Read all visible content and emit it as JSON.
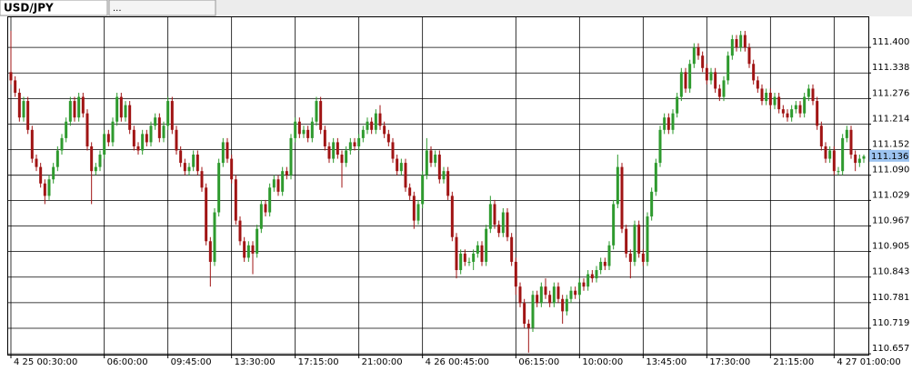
{
  "tabs": [
    "USD/JPY",
    "..."
  ],
  "chart_data": {
    "type": "candlestick",
    "categories": [
      "4 25 00:30:00",
      null,
      null,
      null,
      null,
      null,
      null,
      null,
      null,
      null,
      null,
      null,
      null,
      null,
      null,
      null,
      null,
      null,
      null,
      null,
      null,
      null,
      "06:00:00",
      null,
      null,
      null,
      null,
      null,
      null,
      null,
      null,
      null,
      null,
      null,
      null,
      null,
      null,
      "09:45:00",
      null,
      null,
      null,
      null,
      null,
      null,
      null,
      null,
      null,
      null,
      null,
      null,
      null,
      null,
      "13:30:00",
      null,
      null,
      null,
      null,
      null,
      null,
      null,
      null,
      null,
      null,
      null,
      null,
      null,
      null,
      "17:15:00",
      null,
      null,
      null,
      null,
      null,
      null,
      null,
      null,
      null,
      null,
      null,
      null,
      null,
      null,
      "21:00:00",
      null,
      null,
      null,
      null,
      null,
      null,
      null,
      null,
      null,
      null,
      null,
      null,
      null,
      null,
      "4 26 00:45:00",
      null,
      null,
      null,
      null,
      null,
      null,
      null,
      null,
      null,
      null,
      null,
      null,
      null,
      null,
      null,
      null,
      null,
      null,
      null,
      null,
      null,
      "06:15:00",
      null,
      null,
      null,
      null,
      null,
      null,
      null,
      null,
      null,
      null,
      null,
      null,
      null,
      null,
      "10:00:00",
      null,
      null,
      null,
      null,
      null,
      null,
      null,
      null,
      null,
      null,
      null,
      null,
      null,
      null,
      "13:45:00",
      null,
      null,
      null,
      null,
      null,
      null,
      null,
      null,
      null,
      null,
      null,
      null,
      null,
      null,
      "17:30:00",
      null,
      null,
      null,
      null,
      null,
      null,
      null,
      null,
      null,
      null,
      null,
      null,
      null,
      null,
      "21:15:00",
      null,
      null,
      null,
      null,
      null,
      null,
      null,
      null,
      null,
      null,
      null,
      null,
      null,
      null,
      "4 27 01:00:00",
      null,
      null,
      null,
      null,
      null,
      null,
      null
    ],
    "open": [
      111.34,
      111.32,
      111.29,
      111.23,
      111.27,
      111.2,
      111.13,
      111.11,
      111.07,
      111.04,
      111.08,
      111.11,
      111.15,
      111.18,
      111.22,
      111.27,
      111.23,
      111.28,
      111.24,
      111.16,
      111.1,
      111.11,
      111.14,
      111.19,
      111.17,
      111.22,
      111.28,
      111.23,
      111.26,
      111.2,
      111.16,
      111.15,
      111.19,
      111.17,
      111.21,
      111.23,
      111.18,
      111.21,
      111.27,
      111.2,
      111.15,
      111.12,
      111.1,
      111.11,
      111.14,
      111.1,
      111.06,
      110.93,
      110.88,
      111.0,
      111.12,
      111.17,
      111.13,
      111.08,
      110.98,
      110.93,
      110.89,
      110.92,
      110.9,
      110.96,
      111.02,
      111.0,
      111.06,
      111.08,
      111.05,
      111.1,
      111.09,
      111.18,
      111.22,
      111.19,
      111.2,
      111.18,
      111.22,
      111.27,
      111.2,
      111.16,
      111.13,
      111.17,
      111.14,
      111.12,
      111.15,
      111.17,
      111.16,
      111.18,
      111.2,
      111.22,
      111.2,
      111.24,
      111.21,
      111.19,
      111.17,
      111.13,
      111.1,
      111.12,
      111.06,
      111.04,
      110.98,
      111.02,
      111.09,
      111.15,
      111.12,
      111.14,
      111.08,
      111.1,
      111.04,
      110.94,
      110.86,
      110.9,
      110.88,
      110.88,
      110.9,
      110.92,
      110.88,
      110.96,
      111.02,
      110.97,
      110.95,
      111.0,
      110.94,
      110.88,
      110.82,
      110.78,
      110.73,
      110.72,
      110.8,
      110.78,
      110.82,
      110.8,
      110.78,
      110.82,
      110.79,
      110.76,
      110.79,
      110.81,
      110.8,
      110.83,
      110.82,
      110.85,
      110.84,
      110.86,
      110.88,
      110.87,
      110.92,
      111.02,
      111.11,
      110.96,
      110.9,
      110.88,
      110.97,
      110.9,
      110.88,
      110.99,
      111.05,
      111.12,
      111.2,
      111.23,
      111.2,
      111.24,
      111.28,
      111.34,
      111.3,
      111.36,
      111.4,
      111.38,
      111.35,
      111.32,
      111.34,
      111.3,
      111.28,
      111.32,
      111.38,
      111.42,
      111.4,
      111.43,
      111.4,
      111.36,
      111.32,
      111.3,
      111.27,
      111.29,
      111.26,
      111.28,
      111.25,
      111.24,
      111.23,
      111.25,
      111.26,
      111.24,
      111.28,
      111.3,
      111.27,
      111.21,
      111.16,
      111.13,
      111.15,
      111.1,
      111.1,
      111.18,
      111.2,
      111.14,
      111.12,
      111.13
    ],
    "high": [
      111.44,
      111.33,
      111.3,
      111.28,
      111.28,
      111.21,
      111.14,
      111.12,
      111.08,
      111.09,
      111.12,
      111.16,
      111.19,
      111.23,
      111.28,
      111.28,
      111.29,
      111.29,
      111.25,
      111.17,
      111.12,
      111.15,
      111.2,
      111.2,
      111.23,
      111.29,
      111.29,
      111.27,
      111.27,
      111.21,
      111.17,
      111.2,
      111.2,
      111.22,
      111.24,
      111.24,
      111.22,
      111.28,
      111.28,
      111.21,
      111.16,
      111.13,
      111.12,
      111.15,
      111.15,
      111.11,
      111.07,
      110.94,
      111.01,
      111.13,
      111.18,
      111.18,
      111.14,
      111.09,
      110.99,
      110.94,
      110.93,
      110.93,
      110.97,
      111.03,
      111.03,
      111.07,
      111.09,
      111.09,
      111.11,
      111.11,
      111.19,
      111.23,
      111.23,
      111.21,
      111.21,
      111.23,
      111.28,
      111.28,
      111.21,
      111.17,
      111.18,
      111.18,
      111.15,
      111.16,
      111.18,
      111.18,
      111.19,
      111.21,
      111.23,
      111.23,
      111.25,
      111.26,
      111.22,
      111.2,
      111.18,
      111.14,
      111.13,
      111.13,
      111.07,
      111.05,
      111.03,
      111.1,
      111.18,
      111.16,
      111.15,
      111.15,
      111.11,
      111.11,
      111.05,
      110.95,
      110.91,
      110.91,
      110.89,
      110.91,
      110.93,
      110.93,
      110.97,
      111.04,
      111.03,
      110.98,
      111.01,
      111.01,
      110.95,
      110.89,
      110.83,
      110.79,
      110.74,
      110.81,
      110.81,
      110.83,
      110.84,
      110.81,
      110.83,
      110.83,
      110.8,
      110.8,
      110.82,
      110.82,
      110.84,
      110.84,
      110.86,
      110.86,
      110.87,
      110.89,
      110.89,
      110.93,
      111.03,
      111.14,
      111.12,
      110.97,
      110.91,
      110.98,
      110.98,
      110.91,
      111.0,
      111.06,
      111.13,
      111.21,
      111.24,
      111.24,
      111.25,
      111.29,
      111.35,
      111.35,
      111.37,
      111.41,
      111.41,
      111.39,
      111.36,
      111.35,
      111.35,
      111.31,
      111.33,
      111.39,
      111.43,
      111.43,
      111.44,
      111.44,
      111.41,
      111.37,
      111.33,
      111.31,
      111.3,
      111.3,
      111.29,
      111.29,
      111.26,
      111.25,
      111.26,
      111.27,
      111.27,
      111.29,
      111.31,
      111.31,
      111.28,
      111.22,
      111.17,
      111.16,
      111.16,
      111.11,
      111.19,
      111.21,
      111.21,
      111.15,
      111.14,
      111.14
    ],
    "low": [
      111.31,
      111.28,
      111.22,
      111.22,
      111.19,
      111.12,
      111.1,
      111.06,
      111.02,
      111.03,
      111.07,
      111.1,
      111.14,
      111.17,
      111.21,
      111.22,
      111.22,
      111.23,
      111.15,
      111.02,
      111.09,
      111.1,
      111.13,
      111.16,
      111.16,
      111.21,
      111.22,
      111.22,
      111.19,
      111.15,
      111.14,
      111.14,
      111.16,
      111.16,
      111.2,
      111.17,
      111.17,
      111.2,
      111.19,
      111.14,
      111.11,
      111.09,
      111.09,
      111.1,
      111.09,
      111.05,
      110.92,
      110.82,
      110.87,
      110.99,
      111.11,
      111.12,
      111.07,
      110.97,
      110.92,
      110.88,
      110.88,
      110.85,
      110.89,
      110.95,
      110.99,
      110.99,
      111.05,
      111.04,
      111.04,
      111.08,
      111.08,
      111.17,
      111.18,
      111.18,
      111.17,
      111.17,
      111.21,
      111.19,
      111.15,
      111.12,
      111.12,
      111.13,
      111.06,
      111.11,
      111.14,
      111.15,
      111.15,
      111.17,
      111.19,
      111.19,
      111.19,
      111.2,
      111.18,
      111.16,
      111.12,
      111.09,
      111.09,
      111.05,
      111.03,
      110.96,
      110.97,
      111.01,
      111.08,
      111.11,
      111.11,
      111.07,
      111.07,
      111.03,
      110.93,
      110.84,
      110.85,
      110.87,
      110.87,
      110.86,
      110.89,
      110.87,
      110.87,
      110.95,
      110.96,
      110.94,
      110.94,
      110.93,
      110.87,
      110.8,
      110.77,
      110.72,
      110.66,
      110.71,
      110.77,
      110.77,
      110.79,
      110.77,
      110.77,
      110.78,
      110.73,
      110.75,
      110.78,
      110.79,
      110.79,
      110.81,
      110.81,
      110.83,
      110.83,
      110.85,
      110.86,
      110.86,
      110.91,
      111.01,
      110.95,
      110.89,
      110.84,
      110.87,
      110.89,
      110.87,
      110.87,
      110.98,
      111.04,
      111.11,
      111.19,
      111.19,
      111.19,
      111.23,
      111.27,
      111.29,
      111.29,
      111.35,
      111.37,
      111.34,
      111.31,
      111.31,
      111.29,
      111.27,
      111.27,
      111.31,
      111.37,
      111.39,
      111.39,
      111.39,
      111.35,
      111.31,
      111.29,
      111.26,
      111.26,
      111.25,
      111.25,
      111.24,
      111.23,
      111.22,
      111.22,
      111.24,
      111.23,
      111.23,
      111.27,
      111.26,
      111.2,
      111.15,
      111.12,
      111.12,
      111.09,
      111.09,
      111.09,
      111.17,
      111.13,
      111.1,
      111.11,
      111.12
    ],
    "close": [
      111.32,
      111.29,
      111.23,
      111.27,
      111.2,
      111.13,
      111.11,
      111.07,
      111.04,
      111.08,
      111.11,
      111.15,
      111.18,
      111.22,
      111.27,
      111.23,
      111.28,
      111.24,
      111.16,
      111.1,
      111.11,
      111.14,
      111.19,
      111.17,
      111.22,
      111.28,
      111.23,
      111.26,
      111.2,
      111.16,
      111.15,
      111.19,
      111.17,
      111.21,
      111.23,
      111.18,
      111.21,
      111.27,
      111.2,
      111.15,
      111.12,
      111.1,
      111.11,
      111.14,
      111.1,
      111.06,
      110.93,
      110.88,
      111.0,
      111.12,
      111.17,
      111.13,
      111.08,
      110.98,
      110.93,
      110.89,
      110.92,
      110.9,
      110.96,
      111.02,
      111.0,
      111.06,
      111.08,
      111.05,
      111.1,
      111.09,
      111.18,
      111.22,
      111.19,
      111.2,
      111.18,
      111.22,
      111.27,
      111.2,
      111.16,
      111.13,
      111.17,
      111.14,
      111.12,
      111.15,
      111.17,
      111.16,
      111.18,
      111.2,
      111.22,
      111.2,
      111.24,
      111.21,
      111.19,
      111.17,
      111.13,
      111.1,
      111.12,
      111.06,
      111.04,
      110.98,
      111.02,
      111.09,
      111.15,
      111.12,
      111.14,
      111.08,
      111.1,
      111.04,
      110.94,
      110.86,
      110.9,
      110.88,
      110.88,
      110.9,
      110.92,
      110.88,
      110.96,
      111.02,
      110.97,
      110.95,
      111.0,
      110.94,
      110.88,
      110.82,
      110.78,
      110.73,
      110.72,
      110.8,
      110.78,
      110.82,
      110.8,
      110.78,
      110.82,
      110.79,
      110.76,
      110.79,
      110.81,
      110.8,
      110.83,
      110.82,
      110.85,
      110.84,
      110.86,
      110.88,
      110.87,
      110.92,
      111.02,
      111.11,
      110.96,
      110.9,
      110.88,
      110.97,
      110.9,
      110.88,
      110.99,
      111.05,
      111.12,
      111.2,
      111.23,
      111.2,
      111.24,
      111.28,
      111.34,
      111.3,
      111.36,
      111.4,
      111.38,
      111.35,
      111.32,
      111.34,
      111.3,
      111.28,
      111.32,
      111.38,
      111.42,
      111.4,
      111.43,
      111.4,
      111.36,
      111.32,
      111.3,
      111.27,
      111.29,
      111.26,
      111.28,
      111.25,
      111.24,
      111.23,
      111.25,
      111.26,
      111.24,
      111.28,
      111.3,
      111.27,
      111.21,
      111.16,
      111.13,
      111.15,
      111.1,
      111.1,
      111.18,
      111.2,
      111.14,
      111.12,
      111.13,
      111.136
    ],
    "up_color": "#2e9a2e",
    "down_color": "#a01414",
    "ylim": [
      110.655,
      111.473
    ],
    "yticks": [
      {
        "value": 111.4,
        "label": "111.400"
      },
      111.338,
      111.276,
      111.214,
      111.152,
      {
        "value": 111.09,
        "label": "111.090"
      },
      111.029,
      110.967,
      110.905,
      110.843,
      110.781,
      110.719,
      110.657
    ],
    "grid": true
  }
}
